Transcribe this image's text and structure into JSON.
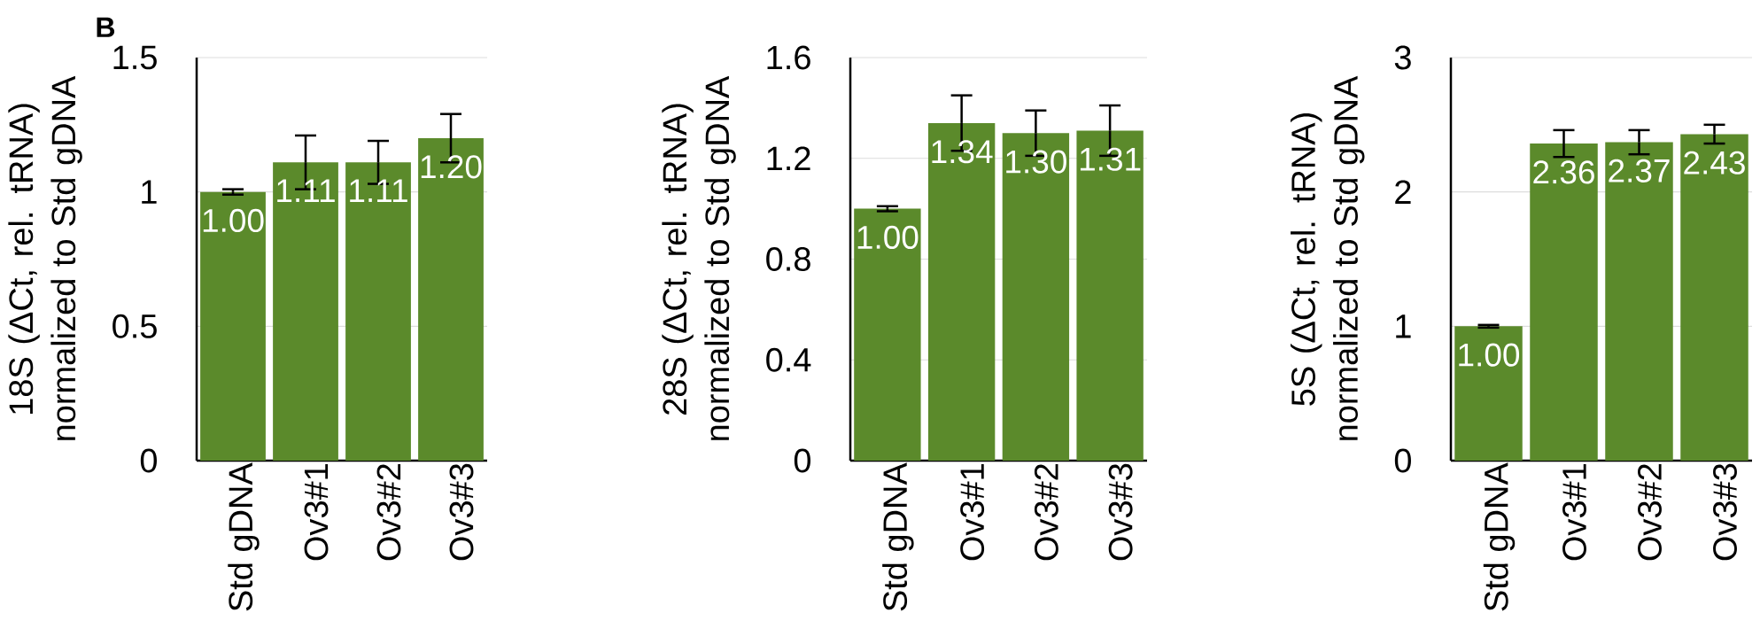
{
  "chart_data": [
    {
      "type": "bar",
      "categories": [
        "Std gDNA",
        "Ov3#1",
        "Ov3#2",
        "Ov3#3"
      ],
      "values": [
        1.0,
        1.11,
        1.11,
        1.2
      ],
      "errors": [
        0.01,
        0.1,
        0.08,
        0.09
      ],
      "value_labels": [
        "1.00",
        "1.11",
        "1.11",
        "1.20"
      ],
      "color": "#5b8a2b",
      "ylabel": "18S (ΔCt, rel. tRNA) normalized to Std gDNA",
      "ylim": [
        0,
        1.5
      ],
      "yticks": [
        0,
        0.5,
        1,
        1.5
      ],
      "grid": "y",
      "annotations": [
        "B"
      ]
    },
    {
      "type": "bar",
      "categories": [
        "Std gDNA",
        "Ov3#1",
        "Ov3#2",
        "Ov3#3"
      ],
      "values": [
        1.0,
        1.34,
        1.3,
        1.31
      ],
      "errors": [
        0.01,
        0.11,
        0.09,
        0.1
      ],
      "value_labels": [
        "1.00",
        "1.34",
        "1.30",
        "1.31"
      ],
      "color": "#5b8a2b",
      "ylabel": "28S (ΔCt, rel. tRNA) normalized to Std gDNA",
      "ylim": [
        0,
        1.6
      ],
      "yticks": [
        0,
        0.4,
        0.8,
        1.2,
        1.6
      ],
      "grid": "y"
    },
    {
      "type": "bar",
      "categories": [
        "Std gDNA",
        "Ov3#1",
        "Ov3#2",
        "Ov3#3"
      ],
      "values": [
        1.0,
        2.36,
        2.37,
        2.43
      ],
      "errors": [
        0.01,
        0.1,
        0.09,
        0.07
      ],
      "value_labels": [
        "1.00",
        "2.36",
        "2.37",
        "2.43"
      ],
      "color": "#5b8a2b",
      "ylabel": "5S (ΔCt, rel. tRNA) normalized to Std gDNA",
      "ylim": [
        0,
        3
      ],
      "yticks": [
        0,
        1,
        2,
        3
      ],
      "grid": "y"
    }
  ]
}
